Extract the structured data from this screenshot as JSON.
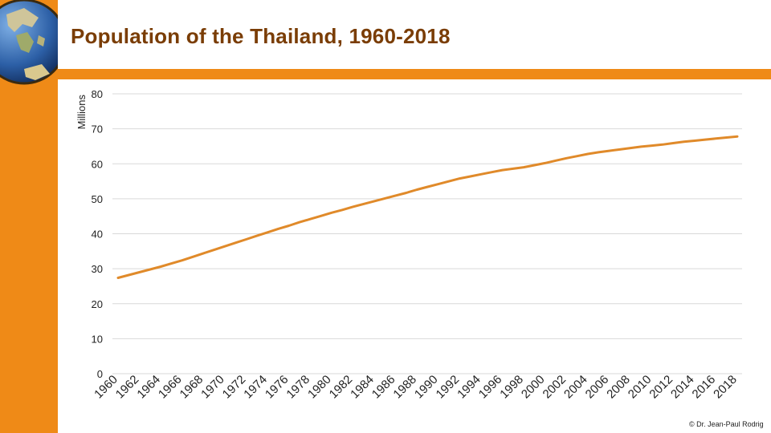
{
  "page": {
    "title": "Population of the Thailand, 1960-2018",
    "credit": "© Dr. Jean-Paul Rodrig"
  },
  "colors": {
    "accent": "#ef8a17",
    "title": "#7a3d05",
    "series": "#e08a2a",
    "grid": "#d9d9d9"
  },
  "icons": {
    "logo": "globe-icon"
  },
  "chart_data": {
    "type": "line",
    "title": "Population of the Thailand, 1960-2018",
    "xlabel": "",
    "ylabel": "Millions",
    "ylim": [
      0,
      80
    ],
    "yticks": [
      0,
      10,
      20,
      30,
      40,
      50,
      60,
      70,
      80
    ],
    "grid": true,
    "legend": "none",
    "x": [
      1960,
      1961,
      1962,
      1963,
      1964,
      1965,
      1966,
      1967,
      1968,
      1969,
      1970,
      1971,
      1972,
      1973,
      1974,
      1975,
      1976,
      1977,
      1978,
      1979,
      1980,
      1981,
      1982,
      1983,
      1984,
      1985,
      1986,
      1987,
      1988,
      1989,
      1990,
      1991,
      1992,
      1993,
      1994,
      1995,
      1996,
      1997,
      1998,
      1999,
      2000,
      2001,
      2002,
      2003,
      2004,
      2005,
      2006,
      2007,
      2008,
      2009,
      2010,
      2011,
      2012,
      2013,
      2014,
      2015,
      2016,
      2017,
      2018
    ],
    "xticks": [
      1960,
      1962,
      1964,
      1966,
      1968,
      1970,
      1972,
      1974,
      1976,
      1978,
      1980,
      1982,
      1984,
      1986,
      1988,
      1990,
      1992,
      1994,
      1996,
      1998,
      2000,
      2002,
      2004,
      2006,
      2008,
      2010,
      2012,
      2014,
      2016,
      2018
    ],
    "series": [
      {
        "values": [
          27.4,
          28.2,
          29.0,
          29.8,
          30.6,
          31.5,
          32.4,
          33.4,
          34.4,
          35.4,
          36.4,
          37.4,
          38.4,
          39.4,
          40.4,
          41.4,
          42.3,
          43.3,
          44.2,
          45.1,
          46.0,
          46.8,
          47.7,
          48.5,
          49.3,
          50.1,
          50.9,
          51.7,
          52.6,
          53.4,
          54.2,
          55.0,
          55.8,
          56.4,
          57.0,
          57.6,
          58.2,
          58.6,
          59.0,
          59.6,
          60.2,
          60.9,
          61.6,
          62.2,
          62.8,
          63.3,
          63.7,
          64.1,
          64.5,
          64.9,
          65.2,
          65.5,
          65.9,
          66.3,
          66.6,
          66.9,
          67.2,
          67.5,
          67.8
        ]
      }
    ]
  }
}
